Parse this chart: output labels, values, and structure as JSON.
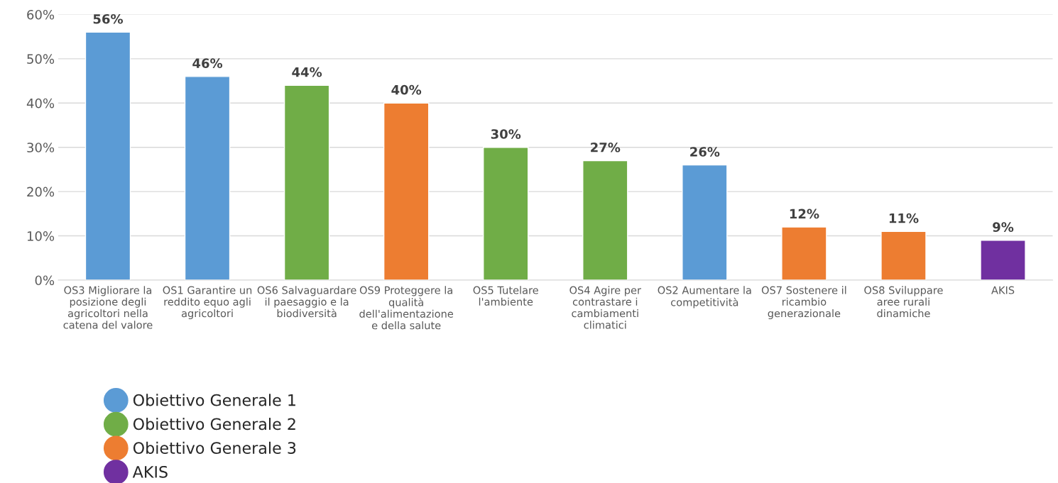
{
  "chart_data": {
    "type": "bar",
    "categories": [
      "OS3 Migliorare la\nposizione degli\nagricoltori nella\ncatena del valore",
      "OS1 Garantire un\nreddito equo agli\nagricoltori",
      "OS6 Salvaguardare\nil paesaggio e la\nbiodiversità",
      "OS9 Proteggere la\nqualità\ndell'alimentazione\ne della salute",
      "OS5 Tutelare\nl'ambiente",
      "OS4 Agire per\ncontrastare i\ncambiamenti\nclimatici",
      "OS2 Aumentare la\ncompetitività",
      "OS7 Sostenere il\nricambio\ngenerazionale",
      "OS8 Sviluppare\naree rurali\ndinamiche",
      "AKIS"
    ],
    "series": [
      {
        "name": "Obiettivo Generale 1",
        "color": "#5b9bd5",
        "values": [
          56,
          46,
          null,
          null,
          null,
          null,
          26,
          null,
          null,
          null
        ],
        "value_labels": [
          "56%",
          "46%",
          null,
          null,
          null,
          null,
          "26%",
          null,
          null,
          null
        ]
      },
      {
        "name": "Obiettivo Generale 2",
        "color": "#70ad47",
        "values": [
          null,
          null,
          44,
          null,
          30,
          27,
          null,
          null,
          null,
          null
        ],
        "value_labels": [
          null,
          null,
          "44%",
          null,
          "30%",
          "27%",
          null,
          null,
          null,
          null
        ]
      },
      {
        "name": "Obiettivo Generale 3",
        "color": "#ed7d31",
        "values": [
          null,
          null,
          null,
          40,
          null,
          null,
          null,
          12,
          11,
          null
        ],
        "value_labels": [
          null,
          null,
          null,
          "40%",
          null,
          null,
          null,
          "12%",
          "11%",
          null
        ]
      },
      {
        "name": "AKIS",
        "color": "#7030a0",
        "values": [
          null,
          null,
          null,
          null,
          null,
          null,
          null,
          null,
          null,
          9
        ],
        "value_labels": [
          null,
          null,
          null,
          null,
          null,
          null,
          null,
          null,
          null,
          "9%"
        ]
      }
    ],
    "stacked": true,
    "ylim": [
      0,
      60
    ],
    "yticks": [
      {
        "value": 0,
        "label": "0%"
      },
      {
        "value": 10,
        "label": "10%"
      },
      {
        "value": 20,
        "label": "20%"
      },
      {
        "value": 30,
        "label": "30%"
      },
      {
        "value": 40,
        "label": "40%"
      },
      {
        "value": 50,
        "label": "50%"
      },
      {
        "value": 60,
        "label": "60%"
      }
    ],
    "grid": "y",
    "legend": "bottom left",
    "marker": "circle"
  }
}
